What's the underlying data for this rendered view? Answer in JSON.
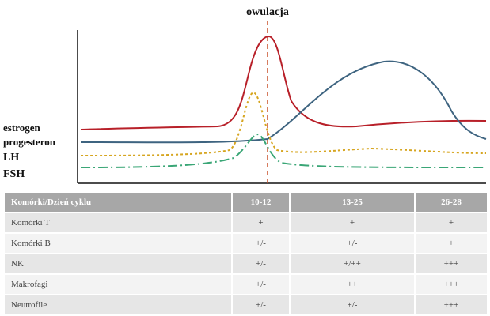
{
  "chart": {
    "top_label": "owulacja",
    "legend_labels": [
      "estrogen",
      "progesteron",
      "LH",
      "FSH"
    ],
    "colors": {
      "estrogen": "#b82029",
      "progesteron": "#3e6480",
      "LH": "#d6a51f",
      "FSH": "#3aa676",
      "ovulation_line": "#c8502a"
    }
  },
  "table": {
    "headers": [
      "Komórki/Dzień cyklu",
      "10-12",
      "13-25",
      "26-28"
    ],
    "rows": [
      [
        "Komórki T",
        "+",
        "+",
        "+"
      ],
      [
        "Komórki B",
        "+/-",
        "+/-",
        "+"
      ],
      [
        "NK",
        "+/-",
        "+/++",
        "+++"
      ],
      [
        "Makrofagi",
        "+/-",
        "++",
        "+++"
      ],
      [
        "Neutrofile",
        "+/-",
        "+/-",
        "+++"
      ]
    ]
  }
}
